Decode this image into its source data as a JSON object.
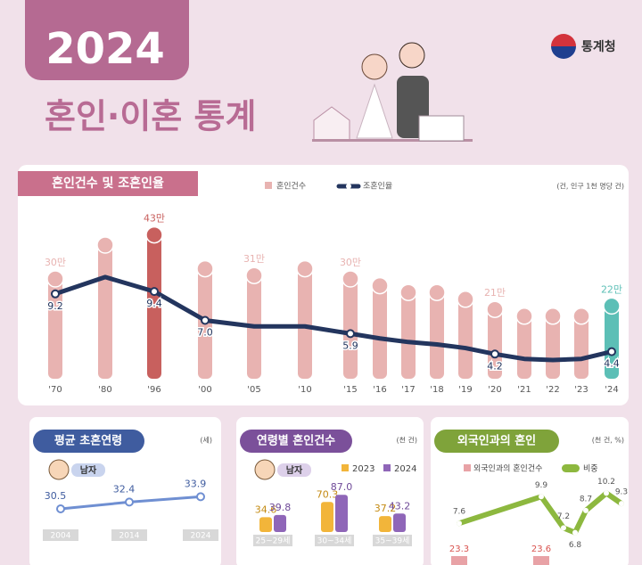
{
  "header": {
    "year": "2024",
    "title": "혼인·이혼 통계",
    "agency": "통계청"
  },
  "chart_data": [
    {
      "type": "bar-line",
      "title": "혼인건수 및 조혼인율",
      "unit_note": "(건, 인구 1천 명당 건)",
      "categories": [
        "'70",
        "'80",
        "'96",
        "'00",
        "'05",
        "'10",
        "'15",
        "'16",
        "'17",
        "'18",
        "'19",
        "'20",
        "'21",
        "'22",
        "'23",
        "'24"
      ],
      "series": [
        {
          "name": "혼인건수",
          "type": "bar",
          "color": "#e8b3b1",
          "colors": [
            "#e8b3b1",
            "#e8b3b1",
            "#c8605e",
            "#e8b3b1",
            "#e8b3b1",
            "#e8b3b1",
            "#e8b3b1",
            "#e8b3b1",
            "#e8b3b1",
            "#e8b3b1",
            "#e8b3b1",
            "#e8b3b1",
            "#e8b3b1",
            "#e8b3b1",
            "#e8b3b1",
            "#5cbfb6"
          ],
          "values": [
            30,
            40,
            43,
            33,
            31,
            33,
            30,
            28,
            26,
            26,
            24,
            21,
            19,
            19,
            19,
            22
          ],
          "value_labels": [
            "30만",
            null,
            "43만",
            null,
            "31만",
            null,
            "30만",
            null,
            null,
            null,
            null,
            "21만",
            null,
            null,
            null,
            "22만"
          ]
        },
        {
          "name": "조혼인율",
          "type": "line",
          "color": "#23355e",
          "values": [
            9.2,
            10.6,
            9.4,
            7.0,
            6.5,
            6.5,
            5.9,
            5.5,
            5.2,
            5.0,
            4.7,
            4.2,
            3.8,
            3.7,
            3.8,
            4.4
          ],
          "value_labels": [
            "9.2",
            null,
            "9.4",
            "7.0",
            null,
            null,
            "5.9",
            null,
            null,
            null,
            null,
            "4.2",
            null,
            null,
            null,
            "4.4"
          ]
        }
      ]
    },
    {
      "type": "line",
      "title": "평균 초혼연령",
      "unit_note": "(세)",
      "legend_label": "남자",
      "categories": [
        "2004",
        "2014",
        "2024"
      ],
      "series": [
        {
          "color": "#6f8fd2",
          "values": [
            30.5,
            32.4,
            33.9
          ]
        }
      ]
    },
    {
      "type": "bar",
      "title": "연령별 혼인건수",
      "unit_note": "(천 건)",
      "legend_label": "남자",
      "categories": [
        "25~29세",
        "30~34세",
        "35~39세"
      ],
      "series": [
        {
          "name": "2023",
          "color": "#f2b53a",
          "values": [
            34.6,
            70.3,
            37.2
          ]
        },
        {
          "name": "2024",
          "color": "#8f66b8",
          "values": [
            39.8,
            87,
            43.2
          ],
          "value_labels": [
            "39.8",
            "87.0",
            "43.2"
          ]
        }
      ]
    },
    {
      "type": "bar-line",
      "title": "외국인과의 혼인",
      "unit_note": "(천 건, %)",
      "categories": [
        null,
        null,
        null,
        null,
        null,
        null,
        null
      ],
      "series": [
        {
          "name": "외국인과의 혼인건수",
          "type": "bar",
          "color": "#e8a2a6",
          "values": [
            23.3,
            23.6,
            null,
            null,
            null,
            null,
            null
          ]
        },
        {
          "name": "비중",
          "type": "line",
          "color": "#8db83f",
          "values": [
            7.6,
            9.9,
            7.2,
            6.8,
            8.7,
            10.2,
            9.3
          ]
        }
      ]
    }
  ]
}
